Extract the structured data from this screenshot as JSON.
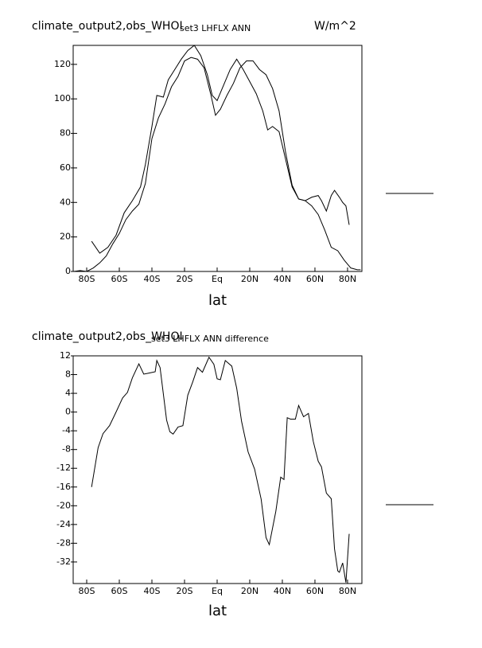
{
  "chart_data": [
    {
      "type": "line",
      "title": "climate_output2,obs_WHOI",
      "subtitle": "set3 LHFLX ANN",
      "units": "W/m^2",
      "xlabel": "lat",
      "xlim": [
        -88.3,
        88.8
      ],
      "ylim": [
        0,
        131
      ],
      "xticks": [
        {
          "value": -80,
          "label": "80S"
        },
        {
          "value": -60,
          "label": "60S"
        },
        {
          "value": -40,
          "label": "40S"
        },
        {
          "value": -20,
          "label": "20S"
        },
        {
          "value": 0,
          "label": "Eq"
        },
        {
          "value": 20,
          "label": "20N"
        },
        {
          "value": 40,
          "label": "40N"
        },
        {
          "value": 60,
          "label": "60N"
        },
        {
          "value": 80,
          "label": "80N"
        }
      ],
      "yticks": [
        0,
        20,
        40,
        60,
        80,
        100,
        120
      ],
      "series": [
        {
          "color": "#000000",
          "x": [
            -77,
            -72,
            -67,
            -62,
            -57,
            -52,
            -47,
            -44,
            -40,
            -37,
            -33,
            -30,
            -26,
            -22,
            -18,
            -14,
            -10,
            -6,
            -3,
            0,
            4,
            8,
            12,
            16,
            20,
            24,
            28,
            31,
            34,
            38,
            42,
            46,
            50,
            54,
            58,
            62,
            64,
            67,
            70,
            72,
            75,
            77,
            79,
            81
          ],
          "values": [
            17.5,
            10.6,
            14,
            21,
            34,
            41,
            49,
            62,
            84,
            102,
            101,
            111,
            117,
            123,
            128,
            131,
            125,
            114,
            102,
            99,
            108,
            117,
            123,
            117,
            110,
            103,
            93,
            82,
            84,
            81,
            65,
            49,
            42,
            41,
            43,
            44,
            41,
            35,
            44,
            47,
            43,
            40,
            38,
            27
          ]
        },
        {
          "color": "#000000",
          "x": [
            -88,
            -84,
            -80,
            -76,
            -72,
            -68,
            -64,
            -60,
            -56,
            -52,
            -48,
            -44,
            -40,
            -36,
            -32,
            -28,
            -24,
            -20,
            -16,
            -12,
            -8,
            -4,
            -1,
            2,
            6,
            10,
            14,
            18,
            22,
            26,
            30,
            34,
            38,
            42,
            46,
            50,
            54,
            58,
            62,
            66,
            70,
            74,
            78,
            82,
            86,
            88
          ],
          "values": [
            0,
            0.5,
            0,
            2,
            5,
            9,
            16,
            22,
            30,
            35,
            39,
            51,
            77,
            89,
            97,
            107,
            113,
            122,
            124,
            123,
            118,
            103,
            90.5,
            94,
            102,
            109,
            118,
            122,
            122,
            117,
            114,
            106,
            93,
            69,
            50,
            42,
            41,
            38,
            33,
            24,
            14,
            12,
            6.5,
            2,
            1,
            1
          ]
        }
      ]
    },
    {
      "type": "line",
      "title": "climate_output2,obs_WHOI",
      "subtitle": "set3 LHFLX ANN difference",
      "xlabel": "lat",
      "xlim": [
        -88.3,
        88.8
      ],
      "ylim": [
        -36.6,
        12
      ],
      "xticks": [
        {
          "value": -80,
          "label": "80S"
        },
        {
          "value": -60,
          "label": "60S"
        },
        {
          "value": -40,
          "label": "40S"
        },
        {
          "value": -20,
          "label": "20S"
        },
        {
          "value": 0,
          "label": "Eq"
        },
        {
          "value": 20,
          "label": "20N"
        },
        {
          "value": 40,
          "label": "40N"
        },
        {
          "value": 60,
          "label": "60N"
        },
        {
          "value": 80,
          "label": "80N"
        }
      ],
      "yticks": [
        12,
        8,
        4,
        0,
        -4,
        -8,
        -12,
        -16,
        -20,
        -24,
        -28,
        -32
      ],
      "series": [
        {
          "color": "#000000",
          "x": [
            -77,
            -73,
            -70,
            -66,
            -62,
            -58,
            -55,
            -52,
            -48,
            -45,
            -42,
            -38,
            -37,
            -35,
            -31,
            -29,
            -27,
            -24,
            -21,
            -18,
            -15,
            -12,
            -9,
            -5,
            -2,
            0,
            2,
            5,
            9,
            12,
            15,
            19,
            23,
            27,
            30,
            32,
            36,
            39,
            41,
            43,
            45,
            48,
            50,
            53,
            56,
            59,
            62,
            64,
            67,
            70,
            72,
            74,
            75,
            77,
            79,
            81
          ],
          "values": [
            -16,
            -7.6,
            -4.6,
            -2.9,
            0,
            3,
            4.2,
            7.3,
            10.3,
            8.1,
            8.3,
            8.6,
            11,
            9.5,
            -1.7,
            -4.2,
            -4.7,
            -3.2,
            -2.9,
            3.6,
            6.4,
            9.5,
            8.5,
            11.7,
            10.2,
            7.1,
            6.9,
            11,
            9.8,
            5.1,
            -2,
            -8.5,
            -12.2,
            -18.6,
            -26.8,
            -28.3,
            -21.2,
            -13.9,
            -14.4,
            -1.2,
            -1.5,
            -1.5,
            1.4,
            -1,
            -0.3,
            -6.3,
            -10.5,
            -11.7,
            -17.3,
            -18.5,
            -29.2,
            -33.9,
            -34.2,
            -32.2,
            -36.4,
            -26
          ]
        }
      ]
    }
  ]
}
